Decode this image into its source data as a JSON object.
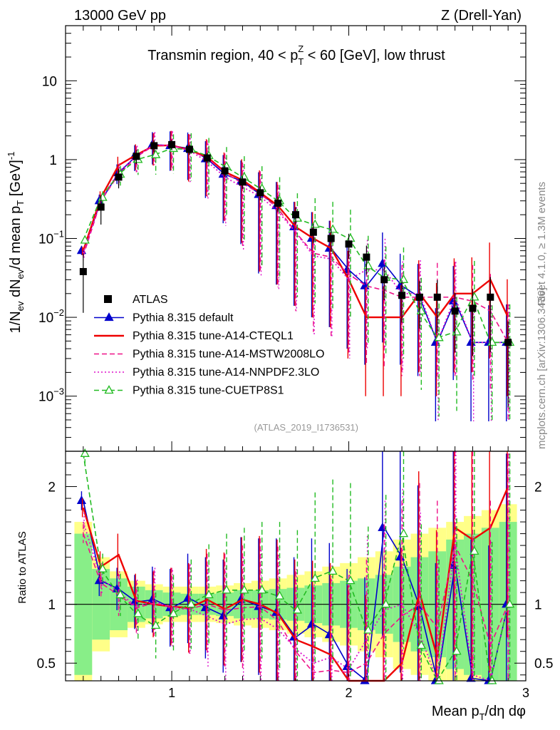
{
  "header": {
    "left": "13000 GeV pp",
    "right": "Z (Drell-Yan)"
  },
  "side_labels": {
    "rivet": "Rivet 4.1.0, ≥ 1.3M events",
    "mcplots": "mcplots.cern.ch [arXiv:1306.3436]"
  },
  "chart_data": {
    "type": "line",
    "title": "Transmin region, 40 < p_T^Z < 60 [GeV], low thrust",
    "title_parts": {
      "pre": "Transmin region, 40 < p",
      "sub": "T",
      "sup": "Z",
      "post": " < 60 [GeV], low thrust"
    },
    "analysis_id": "(ATLAS_2019_I1736531)",
    "ylabel_main": {
      "a": "1/N",
      "a_sub": "ev",
      "b": " dN",
      "b_sub": "ev",
      "c": "/d mean p",
      "c_sub": "T",
      "d": " [GeV]",
      "d_sup": "-1"
    },
    "ylabel_ratio": "Ratio to ATLAS",
    "xlabel": {
      "a": "Mean p",
      "a_sub": "T",
      "b": "/dη dφ"
    },
    "xlim": [
      0.4,
      3.0
    ],
    "ylim_main": [
      0.0002,
      50
    ],
    "ylim_ratio": [
      0.35,
      2.3
    ],
    "x_ticks": [
      {
        "v": 1,
        "label": "1"
      },
      {
        "v": 2,
        "label": "2"
      },
      {
        "v": 3,
        "label": "3"
      }
    ],
    "y_ticks_main": [
      {
        "v": 10,
        "label": "10",
        "sup": ""
      },
      {
        "v": 1,
        "label": "1",
        "sup": ""
      },
      {
        "v": 0.1,
        "label": "10",
        "sup": "−1"
      },
      {
        "v": 0.01,
        "label": "10",
        "sup": "−2"
      },
      {
        "v": 0.001,
        "label": "10",
        "sup": "−3"
      }
    ],
    "y_ticks_ratio": [
      {
        "v": 2,
        "label": "2"
      },
      {
        "v": 1,
        "label": "1"
      },
      {
        "v": 0.5,
        "label": "0.5"
      }
    ],
    "x": [
      0.5,
      0.6,
      0.7,
      0.8,
      0.9,
      1.0,
      1.1,
      1.2,
      1.3,
      1.4,
      1.5,
      1.6,
      1.7,
      1.8,
      1.9,
      2.0,
      2.1,
      2.2,
      2.3,
      2.4,
      2.5,
      2.6,
      2.7,
      2.8,
      2.9
    ],
    "data": {
      "name": "ATLAS",
      "values": [
        0.038,
        0.25,
        0.6,
        1.1,
        1.5,
        1.55,
        1.35,
        1.05,
        0.72,
        0.52,
        0.38,
        0.28,
        0.2,
        0.12,
        0.1,
        0.085,
        0.058,
        0.03,
        0.019,
        0.018,
        0.018,
        0.012,
        0.013,
        0.018,
        0.0048
      ],
      "band_inner": [
        0.6,
        0.3,
        0.22,
        0.15,
        0.12,
        0.1,
        0.09,
        0.09,
        0.1,
        0.12,
        0.12,
        0.13,
        0.14,
        0.16,
        0.18,
        0.2,
        0.22,
        0.25,
        0.32,
        0.4,
        0.45,
        0.55,
        0.6,
        0.65,
        0.7
      ],
      "band_outer": [
        0.7,
        0.4,
        0.28,
        0.2,
        0.17,
        0.15,
        0.15,
        0.15,
        0.16,
        0.18,
        0.2,
        0.22,
        0.25,
        0.28,
        0.32,
        0.35,
        0.4,
        0.45,
        0.55,
        0.6,
        0.65,
        0.7,
        0.75,
        0.8,
        0.85
      ]
    },
    "series": [
      {
        "name": "Pythia 8.315 default",
        "color": "#0000cc",
        "style": "solid",
        "marker": "triangle",
        "values": [
          0.07,
          0.3,
          0.68,
          1.12,
          1.55,
          1.5,
          1.38,
          1.02,
          0.65,
          0.53,
          0.36,
          0.26,
          0.14,
          0.1,
          0.075,
          0.04,
          0.025,
          0.048,
          0.025,
          0.018,
          0.0048,
          0.016,
          0.0048,
          0.0048,
          0.0048
        ],
        "ratio": [
          1.88,
          1.2,
          1.13,
          1.02,
          1.04,
          0.97,
          1.05,
          0.97,
          0.9,
          1.04,
          0.98,
          0.93,
          0.72,
          0.83,
          0.74,
          0.47,
          0.35,
          1.65,
          1.4,
          0.98,
          0.27,
          1.33,
          0.37,
          0.27,
          1.0
        ]
      },
      {
        "name": "Pythia 8.315 tune-A14-CTEQL1",
        "color": "#ee0000",
        "style": "solid",
        "marker": "none",
        "values": [
          0.07,
          0.33,
          0.85,
          1.15,
          1.5,
          1.52,
          1.32,
          1.08,
          0.7,
          0.55,
          0.38,
          0.26,
          0.14,
          0.1,
          0.075,
          0.03,
          0.01,
          0.01,
          0.01,
          0.02,
          0.01,
          0.02,
          0.02,
          0.03,
          0.01
        ],
        "ratio": [
          1.82,
          1.32,
          1.42,
          1.03,
          1.0,
          0.98,
          0.97,
          1.04,
          0.96,
          1.04,
          1.0,
          0.92,
          0.7,
          0.64,
          0.57,
          0.33,
          0.2,
          0.33,
          0.5,
          1.1,
          0.55,
          1.65,
          1.55,
          1.65,
          2.0
        ]
      },
      {
        "name": "Pythia 8.315 tune-A14-MSTW2008LO",
        "color": "#ee1188",
        "style": "dashed",
        "marker": "none",
        "values": [
          0.06,
          0.3,
          0.65,
          1.08,
          1.52,
          1.52,
          1.3,
          1.05,
          0.68,
          0.5,
          0.37,
          0.24,
          0.12,
          0.065,
          0.058,
          0.035,
          0.025,
          0.022,
          0.018,
          0.018,
          0.018,
          0.018,
          0.016,
          0.012,
          0.0048
        ],
        "ratio": [
          1.6,
          1.18,
          1.08,
          0.97,
          1.01,
          0.98,
          0.96,
          1.0,
          0.95,
          0.97,
          0.98,
          0.86,
          0.6,
          0.42,
          0.44,
          0.42,
          0.5,
          0.75,
          0.9,
          1.0,
          0.8,
          1.5,
          1.2,
          0.65,
          1.0
        ]
      },
      {
        "name": "Pythia 8.315 tune-A14-NNPDF2.3LO",
        "color": "#dd11cc",
        "style": "dotted",
        "marker": "none",
        "values": [
          0.065,
          0.31,
          0.7,
          1.1,
          1.55,
          1.5,
          1.3,
          0.95,
          0.6,
          0.45,
          0.34,
          0.22,
          0.12,
          0.06,
          0.055,
          0.03,
          0.04,
          0.04,
          0.02,
          0.02,
          0.0048,
          0.018,
          0.0048,
          0.0048,
          0.0048
        ],
        "ratio": [
          1.7,
          1.22,
          1.1,
          0.98,
          1.03,
          0.96,
          0.96,
          0.9,
          0.83,
          0.87,
          0.88,
          0.79,
          0.62,
          0.5,
          0.55,
          0.45,
          0.7,
          0.95,
          1.0,
          0.75,
          0.3,
          1.5,
          0.4,
          0.3,
          1.0
        ]
      },
      {
        "name": "Pythia 8.315 tune-CUETP8S1",
        "color": "#22bb22",
        "style": "dashed",
        "marker": "open-triangle",
        "values": [
          0.095,
          0.33,
          0.65,
          1.0,
          1.15,
          1.38,
          1.35,
          1.12,
          0.82,
          0.6,
          0.43,
          0.3,
          0.18,
          0.15,
          0.13,
          0.1,
          0.045,
          0.032,
          0.03,
          0.012,
          0.0055,
          0.0065,
          0.018,
          0.0048,
          0.0048
        ],
        "ratio": [
          2.28,
          1.3,
          1.08,
          0.92,
          0.82,
          0.92,
          1.0,
          1.08,
          1.12,
          1.12,
          1.12,
          1.07,
          0.95,
          1.22,
          1.28,
          1.2,
          0.78,
          1.0,
          1.6,
          0.65,
          0.3,
          0.6,
          1.45,
          0.3,
          1.0
        ]
      }
    ]
  }
}
